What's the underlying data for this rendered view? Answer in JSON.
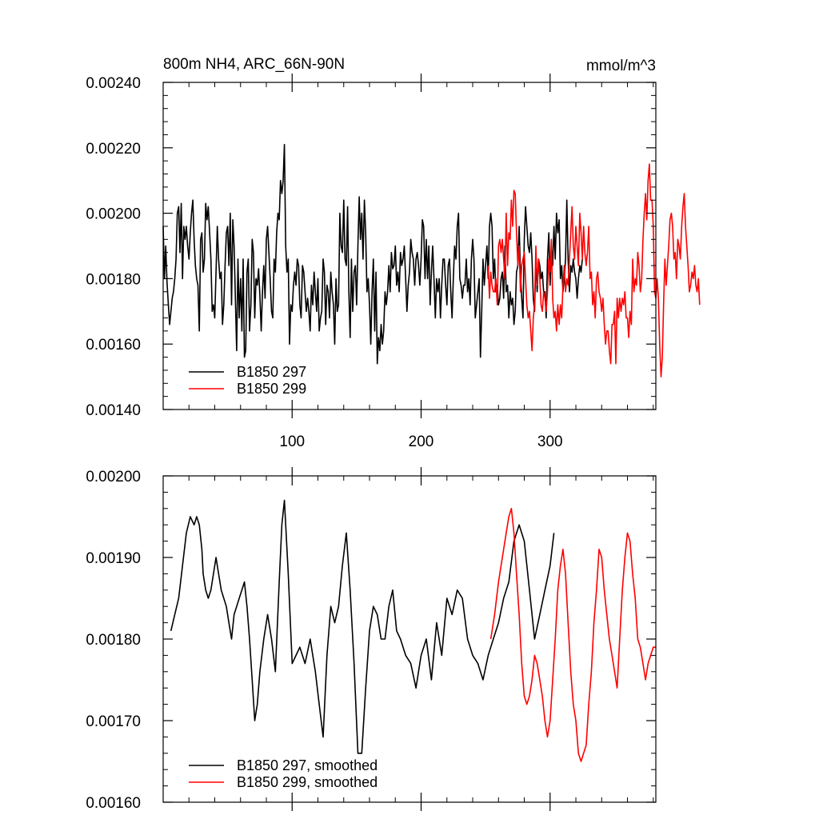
{
  "chart_data": [
    {
      "type": "line",
      "title": "800m NH4, ARC_66N-90N",
      "units": "mmol/m^3",
      "xlim": [
        0,
        382
      ],
      "ylim": [
        0.0014,
        0.0024
      ],
      "xticks": [
        100,
        200,
        300
      ],
      "xtick_labels": [
        "100",
        "200",
        "300"
      ],
      "yticks": [
        0.0014,
        0.0016,
        0.0018,
        0.002,
        0.0022,
        0.0024
      ],
      "ytick_labels": [
        "0.00140",
        "0.00160",
        "0.00180",
        "0.00200",
        "0.00220",
        "0.00240"
      ],
      "legend_position": "bottom-left",
      "series": [
        {
          "name": "B1850 297",
          "color": "#000000",
          "x_start": 0,
          "values": [
            0.00196,
            0.0018,
            0.0019,
            0.00179,
            0.00172,
            0.00166,
            0.0017,
            0.00174,
            0.00176,
            0.0018,
            0.00186,
            0.002,
            0.00202,
            0.00188,
            0.00203,
            0.0018,
            0.00196,
            0.00192,
            0.00196,
            0.0019,
            0.00186,
            0.00194,
            0.002,
            0.00204,
            0.00192,
            0.00184,
            0.0018,
            0.00178,
            0.00164,
            0.00192,
            0.00194,
            0.00182,
            0.00186,
            0.00203,
            0.00198,
            0.00202,
            0.00194,
            0.00186,
            0.0017,
            0.00172,
            0.00168,
            0.00182,
            0.00196,
            0.00186,
            0.0018,
            0.00182,
            0.00166,
            0.00172,
            0.00184,
            0.00194,
            0.00196,
            0.00184,
            0.002,
            0.00172,
            0.00198,
            0.0019,
            0.00174,
            0.00158,
            0.00186,
            0.00168,
            0.0018,
            0.00164,
            0.00186,
            0.00156,
            0.00158,
            0.00182,
            0.00186,
            0.00164,
            0.00172,
            0.00192,
            0.00188,
            0.00168,
            0.0018,
            0.00178,
            0.00183,
            0.00175,
            0.00164,
            0.00176,
            0.00184,
            0.00174,
            0.00192,
            0.00196,
            0.00188,
            0.0018,
            0.0017,
            0.00168,
            0.00186,
            0.00182,
            0.00194,
            0.002,
            0.00198,
            0.0021,
            0.00206,
            0.0021,
            0.00221,
            0.0019,
            0.00182,
            0.00186,
            0.0016,
            0.00172,
            0.0017,
            0.00178,
            0.00182,
            0.00178,
            0.00186,
            0.00184,
            0.00172,
            0.00168,
            0.00184,
            0.00182,
            0.00176,
            0.0017,
            0.00174,
            0.0017,
            0.00164,
            0.00178,
            0.00172,
            0.00182,
            0.00176,
            0.0017,
            0.0018,
            0.00164,
            0.00168,
            0.0017,
            0.00186,
            0.00182,
            0.00166,
            0.00178,
            0.00176,
            0.00168,
            0.00182,
            0.00176,
            0.00172,
            0.0016,
            0.0018,
            0.0017,
            0.00172,
            0.002,
            0.0019,
            0.00188,
            0.00204,
            0.00186,
            0.00184,
            0.00202,
            0.00176,
            0.00162,
            0.00186,
            0.0017,
            0.00182,
            0.00184,
            0.00172,
            0.0019,
            0.00205,
            0.00192,
            0.002,
            0.00186,
            0.00204,
            0.00194,
            0.00176,
            0.0018,
            0.00172,
            0.0016,
            0.00176,
            0.00186,
            0.00164,
            0.00182,
            0.00154,
            0.00162,
            0.00158,
            0.00166,
            0.0016,
            0.00164,
            0.00176,
            0.00172,
            0.00176,
            0.00184,
            0.00176,
            0.00188,
            0.00183,
            0.00184,
            0.0019,
            0.00178,
            0.00182,
            0.00176,
            0.00188,
            0.00184,
            0.00186,
            0.0019,
            0.0018,
            0.0017,
            0.00178,
            0.00182,
            0.00192,
            0.00188,
            0.00186,
            0.00178,
            0.00186,
            0.00188,
            0.00184,
            0.00178,
            0.00186,
            0.00198,
            0.00196,
            0.0018,
            0.00192,
            0.0018,
            0.0019,
            0.00172,
            0.00182,
            0.0019,
            0.0018,
            0.00168,
            0.0018,
            0.00176,
            0.0018,
            0.00168,
            0.00178,
            0.00186,
            0.00186,
            0.00178,
            0.00172,
            0.00184,
            0.00186,
            0.00176,
            0.00168,
            0.0018,
            0.0019,
            0.00186,
            0.00196,
            0.002,
            0.0018,
            0.00178,
            0.00174,
            0.00178,
            0.00178,
            0.00186,
            0.00176,
            0.0018,
            0.00172,
            0.00186,
            0.00192,
            0.00186,
            0.00168,
            0.00172,
            0.00176,
            0.0018,
            0.00156,
            0.0017,
            0.00186,
            0.00178,
            0.00184,
            0.0019,
            0.0018,
            0.00196,
            0.002,
            0.00196,
            0.0018,
            0.00186,
            0.00176,
            0.00178,
            0.00172,
            0.00174,
            0.0018,
            0.00182,
            0.00174,
            0.0019,
            0.00176,
            0.00178,
            0.00168,
            0.00176,
            0.00172,
            0.00174,
            0.00166,
            0.0017,
            0.00182,
            0.00184,
            0.00196,
            0.00182,
            0.00174,
            0.00168,
            0.00192,
            0.00202,
            0.00196,
            0.0019,
            0.00188,
            0.00194,
            0.00186,
            0.00174,
            0.0017,
            0.00186,
            0.00176,
            0.00186,
            0.00184,
            0.0018,
            0.00182,
            0.00176,
            0.00176,
            0.00168,
            0.00186,
            0.00194,
            0.00178,
            0.0019,
            0.00184,
            0.00196,
            0.00186,
            0.002,
            0.00194,
            0.00198,
            0.0018,
            0.00184,
            0.00176,
            0.0018,
            0.00186,
            0.00204,
            0.00186,
            0.00176,
            0.00184,
            0.00182,
            0.00186,
            0.00182,
            0.0018,
            0.00174,
            0.0018,
            0.00184,
            0.00182,
            0.00186
          ]
        },
        {
          "name": "B1850 299",
          "color": "#ff0000",
          "x_start": 252,
          "values": [
            0.00184,
            0.00174,
            0.00182,
            0.00178,
            0.00176,
            0.00176,
            0.0018,
            0.00172,
            0.0019,
            0.00192,
            0.00188,
            0.00192,
            0.00186,
            0.0018,
            0.002,
            0.00184,
            0.00194,
            0.00192,
            0.00204,
            0.00196,
            0.00207,
            0.00206,
            0.00194,
            0.00184,
            0.0019,
            0.00176,
            0.00184,
            0.00186,
            0.00188,
            0.0018,
            0.00172,
            0.00168,
            0.0017,
            0.00164,
            0.00158,
            0.00168,
            0.00172,
            0.0019,
            0.00178,
            0.00186,
            0.0018,
            0.00172,
            0.0017,
            0.00176,
            0.00174,
            0.0017,
            0.00176,
            0.00186,
            0.00182,
            0.00192,
            0.00174,
            0.00168,
            0.0017,
            0.00164,
            0.00172,
            0.00166,
            0.00172,
            0.00168,
            0.00178,
            0.00184,
            0.00176,
            0.0018,
            0.00178,
            0.00186,
            0.00194,
            0.00202,
            0.0019,
            0.00186,
            0.00196,
            0.0019,
            0.00184,
            0.002,
            0.00194,
            0.00186,
            0.00196,
            0.00188,
            0.00184,
            0.00188,
            0.00196,
            0.0018,
            0.00182,
            0.00172,
            0.00176,
            0.00168,
            0.0018,
            0.00182,
            0.00176,
            0.00174,
            0.0017,
            0.00174,
            0.00166,
            0.0016,
            0.00164,
            0.00164,
            0.00158,
            0.00154,
            0.00166,
            0.00166,
            0.0017,
            0.00154,
            0.00174,
            0.00168,
            0.00174,
            0.0017,
            0.00174,
            0.00172,
            0.00176,
            0.00168,
            0.00168,
            0.00162,
            0.0017,
            0.00166,
            0.00186,
            0.00176,
            0.0018,
            0.00178,
            0.00188,
            0.00184,
            0.00176,
            0.0018,
            0.00192,
            0.002,
            0.00206,
            0.00198,
            0.0021,
            0.00215,
            0.00204,
            0.00204,
            0.00196,
            0.00176,
            0.00174,
            0.0018,
            0.00174,
            0.0016,
            0.0015,
            0.00156,
            0.00172,
            0.00186,
            0.00178,
            0.00184,
            0.0019,
            0.00198,
            0.002,
            0.00196,
            0.00186,
            0.00188,
            0.0018,
            0.00192,
            0.0019,
            0.00186,
            0.00196,
            0.00202,
            0.00206,
            0.00196,
            0.0019,
            0.00184,
            0.00176,
            0.00178,
            0.00182,
            0.0018,
            0.00184,
            0.00178,
            0.00176,
            0.0018,
            0.00172
          ]
        }
      ]
    },
    {
      "type": "line",
      "title": "",
      "xlim": [
        0,
        382
      ],
      "ylim": [
        0.0016,
        0.002
      ],
      "xticks": [
        100,
        200,
        300
      ],
      "xtick_labels": [],
      "yticks": [
        0.0016,
        0.0017,
        0.0018,
        0.0019,
        0.002
      ],
      "ytick_labels": [
        "0.00160",
        "0.00170",
        "0.00180",
        "0.00190",
        "0.00200"
      ],
      "legend_position": "bottom-left",
      "series": [
        {
          "name": "B1850 297, smoothed",
          "color": "#000000",
          "x": [
            6,
            9,
            12,
            15,
            18,
            21,
            24,
            26,
            28,
            30,
            31,
            33,
            35,
            37,
            39,
            41,
            43,
            45,
            47,
            49,
            51,
            53,
            55,
            57,
            59,
            61,
            63,
            65,
            67,
            69,
            71,
            73,
            75,
            78,
            81,
            84,
            87,
            90,
            92,
            94,
            97,
            100,
            103,
            106,
            110,
            114,
            118,
            121,
            124,
            127,
            130,
            133,
            136,
            139,
            142,
            145,
            148,
            151,
            154,
            157,
            160,
            163,
            166,
            169,
            172,
            175,
            178,
            181,
            184,
            188,
            192,
            196,
            200,
            204,
            208,
            212,
            216,
            220,
            224,
            228,
            232,
            236,
            240,
            244,
            248,
            252,
            256,
            260,
            264,
            268,
            272,
            276,
            280,
            284,
            288,
            292,
            296,
            300,
            303
          ],
          "values": [
            0.00181,
            0.00183,
            0.00185,
            0.00189,
            0.00193,
            0.00195,
            0.00194,
            0.00195,
            0.00194,
            0.00191,
            0.00188,
            0.00186,
            0.00185,
            0.00186,
            0.00188,
            0.0019,
            0.00188,
            0.00186,
            0.00185,
            0.00184,
            0.00182,
            0.0018,
            0.00183,
            0.00184,
            0.00185,
            0.00186,
            0.00187,
            0.00184,
            0.0018,
            0.00175,
            0.0017,
            0.00172,
            0.00176,
            0.0018,
            0.00183,
            0.0018,
            0.00176,
            0.00187,
            0.00194,
            0.00197,
            0.00188,
            0.00177,
            0.00178,
            0.00179,
            0.00177,
            0.0018,
            0.00176,
            0.00172,
            0.00168,
            0.00178,
            0.00184,
            0.00182,
            0.00184,
            0.00189,
            0.00193,
            0.00186,
            0.00177,
            0.00166,
            0.00166,
            0.00174,
            0.00181,
            0.00184,
            0.00183,
            0.0018,
            0.0018,
            0.00184,
            0.00186,
            0.00181,
            0.0018,
            0.00178,
            0.00177,
            0.00174,
            0.00178,
            0.0018,
            0.00175,
            0.00182,
            0.00178,
            0.00185,
            0.00183,
            0.00186,
            0.00185,
            0.0018,
            0.00178,
            0.00177,
            0.00175,
            0.00178,
            0.0018,
            0.00182,
            0.00185,
            0.00187,
            0.00192,
            0.00194,
            0.00192,
            0.00186,
            0.0018,
            0.00183,
            0.00186,
            0.00189,
            0.00193
          ]
        },
        {
          "name": "B1850 299, smoothed",
          "color": "#ff0000",
          "x": [
            254,
            257,
            260,
            263,
            266,
            268,
            270,
            272,
            274,
            276,
            278,
            280,
            282,
            284,
            286,
            288,
            290,
            292,
            294,
            296,
            298,
            300,
            302,
            304,
            306,
            308,
            310,
            312,
            314,
            316,
            318,
            320,
            322,
            324,
            326,
            328,
            330,
            332,
            334,
            336,
            338,
            340,
            342,
            344,
            346,
            348,
            350,
            352,
            354,
            356,
            358,
            360,
            362,
            364,
            366,
            368,
            370,
            372,
            374,
            376,
            378,
            380,
            382
          ],
          "values": [
            0.0018,
            0.00183,
            0.00187,
            0.0019,
            0.00193,
            0.00195,
            0.00196,
            0.00193,
            0.00188,
            0.00183,
            0.00177,
            0.00173,
            0.00172,
            0.00173,
            0.00175,
            0.00178,
            0.00177,
            0.00175,
            0.00173,
            0.0017,
            0.00168,
            0.0017,
            0.00175,
            0.0018,
            0.00186,
            0.00189,
            0.00191,
            0.00188,
            0.00182,
            0.00176,
            0.00172,
            0.0017,
            0.00166,
            0.00165,
            0.00166,
            0.00167,
            0.00172,
            0.00176,
            0.00182,
            0.00186,
            0.00191,
            0.0019,
            0.00186,
            0.00183,
            0.0018,
            0.00178,
            0.00176,
            0.00174,
            0.0018,
            0.00186,
            0.0019,
            0.00193,
            0.00192,
            0.00188,
            0.00185,
            0.0018,
            0.00179,
            0.00177,
            0.00175,
            0.00177,
            0.00178,
            0.00179,
            0.00179
          ]
        }
      ]
    }
  ]
}
